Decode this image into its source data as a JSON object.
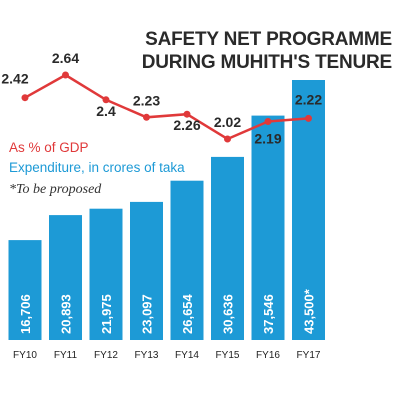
{
  "chart_data": {
    "type": "bar",
    "title": "SAFETY NET PROGRAMME",
    "subtitle": "DURING MUHITH'S TENURE",
    "categories": [
      "FY10",
      "FY11",
      "FY12",
      "FY13",
      "FY14",
      "FY15",
      "FY16",
      "FY17"
    ],
    "series": [
      {
        "name": "Expenditure, in crores of taka",
        "type": "bar",
        "color": "#1d9ad6",
        "values": [
          16706,
          20893,
          21975,
          23097,
          26654,
          30636,
          37546,
          43500
        ],
        "labels": [
          "16,706",
          "20,893",
          "21,975",
          "23,097",
          "26,654",
          "30,636",
          "37,546",
          "43,500*"
        ]
      },
      {
        "name": "As % of GDP",
        "type": "line",
        "color": "#e0393a",
        "values": [
          2.42,
          2.64,
          2.4,
          2.23,
          2.26,
          2.02,
          2.19,
          2.22
        ],
        "labels": [
          "2.42",
          "2.64",
          "2.4",
          "2.23",
          "2.26",
          "2.02",
          "2.19",
          "2.22"
        ]
      }
    ],
    "note": "*To be proposed",
    "grid": false,
    "legend_position": "top-left"
  }
}
